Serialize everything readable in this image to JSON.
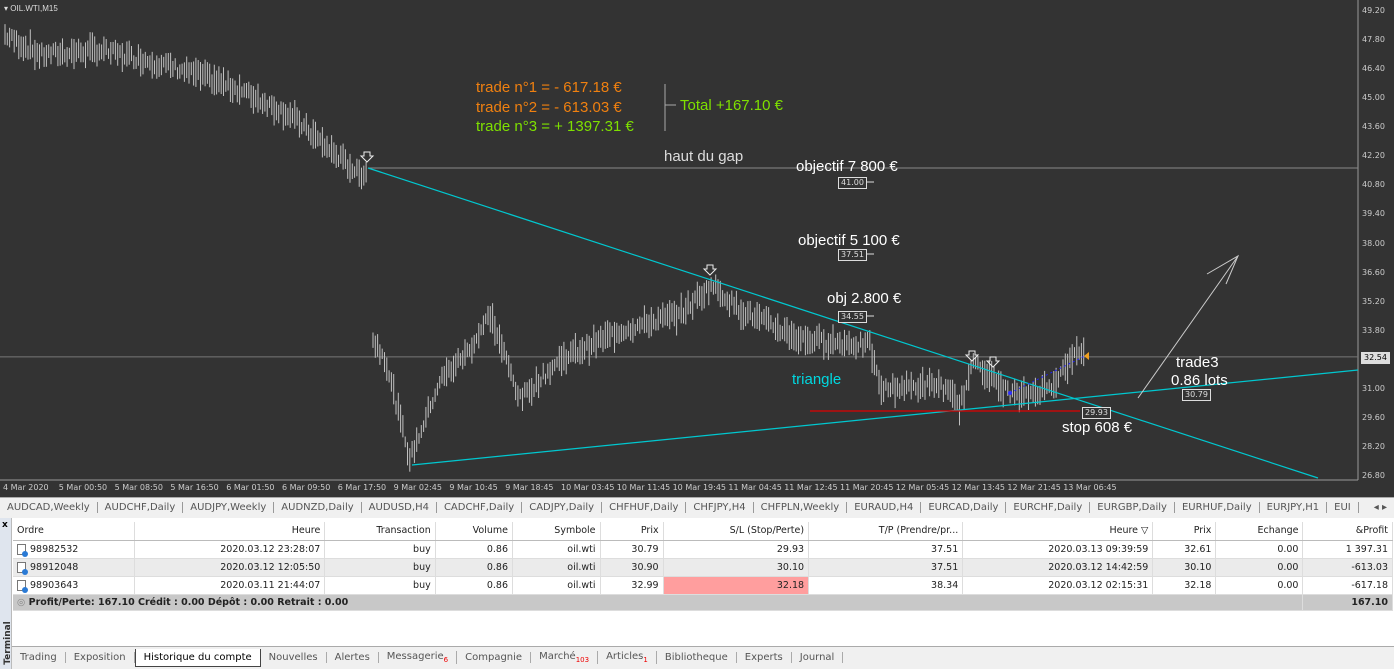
{
  "chart": {
    "title": "OIL.WTI,M15",
    "current_price": "32.54",
    "price_ticks": [
      "49.20",
      "47.80",
      "46.40",
      "45.00",
      "43.60",
      "42.20",
      "40.80",
      "39.40",
      "38.00",
      "36.60",
      "35.20",
      "33.80",
      "31.00",
      "29.60",
      "28.20",
      "26.80"
    ],
    "time_ticks": [
      "4 Mar 2020",
      "5 Mar 00:50",
      "5 Mar 08:50",
      "5 Mar 16:50",
      "6 Mar 01:50",
      "6 Mar 09:50",
      "6 Mar 17:50",
      "9 Mar 02:45",
      "9 Mar 10:45",
      "9 Mar 18:45",
      "10 Mar 03:45",
      "10 Mar 11:45",
      "10 Mar 19:45",
      "11 Mar 04:45",
      "11 Mar 12:45",
      "11 Mar 20:45",
      "12 Mar 05:45",
      "12 Mar 13:45",
      "12 Mar 21:45",
      "13 Mar 06:45"
    ],
    "annotations": {
      "trade1": "trade n°1 = - 617.18 €",
      "trade2": "trade n°2 = - 613.03 €",
      "trade3": "trade n°3 = + 1397.31 €",
      "total": "Total +167.10 €",
      "gap": "haut du gap",
      "obj7800": "objectif 7 800 €",
      "obj5100": "objectif 5 100 €",
      "obj2800": "obj 2.800 €",
      "triangle": "triangle",
      "trade3_label": "trade3",
      "lots": "0.86 lots",
      "stop": "stop 608 €"
    },
    "level_labels": {
      "l4100": "41.00",
      "l3751": "37.51",
      "l3455": "34.55",
      "l2993": "29.93",
      "l3079": "30.79"
    },
    "colors": {
      "background": "#333333",
      "candles": "#c0c0c0",
      "trendline": "#00c8d0",
      "stop_line": "#e00000",
      "loss_text": "#f08010",
      "profit_text": "#7ee000"
    }
  },
  "symbol_tabs": [
    "AUDCAD,Weekly",
    "AUDCHF,Daily",
    "AUDJPY,Weekly",
    "AUDNZD,Daily",
    "AUDUSD,H4",
    "CADCHF,Daily",
    "CADJPY,Daily",
    "CHFHUF,Daily",
    "CHFJPY,H4",
    "CHFPLN,Weekly",
    "EURAUD,H4",
    "EURCAD,Daily",
    "EURCHF,Daily",
    "EURGBP,Daily",
    "EURHUF,Daily",
    "EURJPY,H1",
    "EUI"
  ],
  "terminal": {
    "side_label": "Terminal",
    "close": "x",
    "columns": [
      "Ordre",
      "Heure",
      "Transaction",
      "Volume",
      "Symbole",
      "Prix",
      "S/L (Stop/Perte)",
      "T/P (Prendre/pr...",
      "Heure ▽",
      "Prix",
      "Echange",
      "&Profit"
    ],
    "rows": [
      [
        "98982532",
        "2020.03.12 23:28:07",
        "buy",
        "0.86",
        "oil.wti",
        "30.79",
        "29.93",
        "37.51",
        "2020.03.13 09:39:59",
        "32.61",
        "0.00",
        "1 397.31"
      ],
      [
        "98912048",
        "2020.03.12 12:05:50",
        "buy",
        "0.86",
        "oil.wti",
        "30.90",
        "30.10",
        "37.51",
        "2020.03.12 14:42:59",
        "30.10",
        "0.00",
        "-613.03"
      ],
      [
        "98903643",
        "2020.03.11 21:44:07",
        "buy",
        "0.86",
        "oil.wti",
        "32.99",
        "32.18",
        "38.34",
        "2020.03.12 02:15:31",
        "32.18",
        "0.00",
        "-617.18"
      ]
    ],
    "sl_hit_rows": [
      1,
      2
    ],
    "summary": "Profit/Perte: 167.10  Crédit : 0.00  Dépôt : 0.00  Retrait : 0.00",
    "total": "167.10"
  },
  "bottom_tabs": [
    {
      "label": "Trading"
    },
    {
      "label": "Exposition"
    },
    {
      "label": "Historique du compte",
      "active": true
    },
    {
      "label": "Nouvelles"
    },
    {
      "label": "Alertes"
    },
    {
      "label": "Messagerie",
      "badge": "6"
    },
    {
      "label": "Compagnie"
    },
    {
      "label": "Marché",
      "badge": "103"
    },
    {
      "label": "Articles",
      "badge": "1"
    },
    {
      "label": "Bibliotheque"
    },
    {
      "label": "Experts"
    },
    {
      "label": "Journal"
    }
  ]
}
